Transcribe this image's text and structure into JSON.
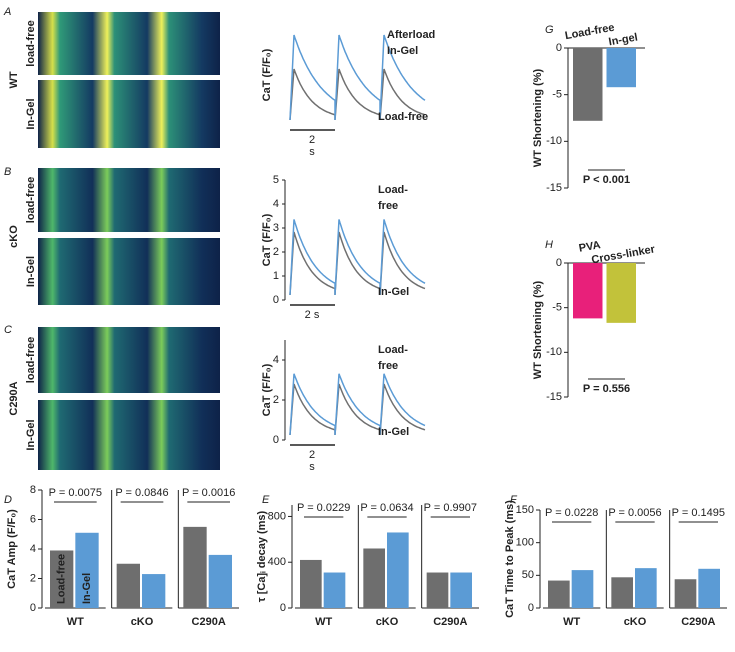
{
  "panel_labels": [
    "A",
    "B",
    "C",
    "D",
    "E",
    "F",
    "G",
    "H"
  ],
  "rows": [
    {
      "genotype": "WT",
      "color": "#f5a03c",
      "image_labels": [
        "load-free",
        "In-Gel"
      ]
    },
    {
      "genotype": "cKO",
      "color": "#f07878",
      "image_labels": [
        "load-free",
        "In-Gel"
      ]
    },
    {
      "genotype": "C290A",
      "color": "#b58ad0",
      "image_labels": [
        "load-free",
        "In-Gel"
      ]
    }
  ],
  "traces": [
    {
      "ylabel": "CaT (F/F₀)",
      "ylabel_color": "#f5a03c",
      "labels": [
        {
          "lines": [
            "Afterload",
            "In-Gel"
          ],
          "color": "#5b9bd5"
        },
        {
          "lines": [
            "Load-free"
          ],
          "color": "#707070"
        }
      ],
      "scale": [
        "2",
        "s"
      ]
    },
    {
      "ylabel": "CaT (F/F₀)",
      "ylabel_color": "#f07878",
      "ylim": [
        0,
        5
      ],
      "yticks": [
        0,
        1,
        2,
        3,
        4,
        5
      ],
      "labels": [
        {
          "lines": [
            "Load-",
            "free"
          ],
          "color": "#707070"
        },
        {
          "lines": [
            "In-Gel"
          ],
          "color": "#5b9bd5"
        }
      ],
      "scale": [
        "2 s"
      ]
    },
    {
      "ylabel": "CaT (F/F₀)",
      "ylabel_color": "#b58ad0",
      "ylim": [
        0,
        5
      ],
      "yticks": [
        0,
        2,
        4
      ],
      "labels": [
        {
          "lines": [
            "Load-",
            "free"
          ],
          "color": "#707070"
        },
        {
          "lines": [
            "In-Gel"
          ],
          "color": "#5b9bd5"
        }
      ],
      "scale": [
        "2",
        "s"
      ]
    }
  ],
  "chart_data": [
    {
      "type": "grouped",
      "ylabel": "CaT Amp (F/F₀)",
      "categories": [
        "WT",
        "cKO",
        "C290A"
      ],
      "category_colors": [
        "#f5a03c",
        "#f07878",
        "#a966c8"
      ],
      "series": [
        {
          "name": "Load-free",
          "color": "#6e6e6e",
          "values": [
            3.9,
            3.0,
            5.5
          ]
        },
        {
          "name": "In-Gel",
          "color": "#5b9bd5",
          "values": [
            5.1,
            2.3,
            3.6
          ]
        }
      ],
      "ylim": [
        0,
        8
      ],
      "yticks": [
        0,
        2,
        4,
        6,
        8
      ],
      "annotations": [
        "P = 0.0075",
        "P = 0.0846",
        "P = 0.0016"
      ]
    },
    {
      "type": "grouped",
      "ylabel": "τ [Ca]ᵢ decay (ms)",
      "categories": [
        "WT",
        "cKO",
        "C290A"
      ],
      "category_colors": [
        "#f5a03c",
        "#f07878",
        "#a966c8"
      ],
      "series": [
        {
          "color": "#6e6e6e",
          "values": [
            420,
            520,
            310
          ]
        },
        {
          "color": "#5b9bd5",
          "values": [
            310,
            660,
            310
          ]
        }
      ],
      "ylim": [
        0,
        900
      ],
      "yticks": [
        0,
        400,
        800
      ],
      "annotations": [
        "P = 0.0229",
        "P = 0.0634",
        "P = 0.9907"
      ]
    },
    {
      "type": "grouped",
      "ylabel": "CaT Time to Peak (ms)",
      "categories": [
        "WT",
        "cKO",
        "C290A"
      ],
      "category_colors": [
        "#f5a03c",
        "#f07878",
        "#a966c8"
      ],
      "series": [
        {
          "color": "#6e6e6e",
          "values": [
            42,
            47,
            44
          ]
        },
        {
          "color": "#5b9bd5",
          "values": [
            58,
            61,
            60
          ]
        }
      ],
      "ylim": [
        0,
        150
      ],
      "yticks": [
        0,
        50,
        100,
        150
      ],
      "annotations": [
        "P = 0.0228",
        "P = 0.0056",
        "P = 0.1495"
      ]
    },
    {
      "type": "bar",
      "ylabel": "WT Shortening (%)",
      "categories": [
        "Load-free",
        "In-gel"
      ],
      "values": [
        -7.8,
        -4.2
      ],
      "colors": [
        "#6e6e6e",
        "#5b9bd5"
      ],
      "ylim": [
        -15,
        0
      ],
      "yticks": [
        -15,
        -10,
        -5,
        0
      ],
      "annotations": [
        "P < 0.001"
      ]
    },
    {
      "type": "bar",
      "ylabel": "WT Shortening (%)",
      "categories": [
        "PVA",
        "Cross-linker"
      ],
      "values": [
        -6.2,
        -6.7
      ],
      "colors": [
        "#e8207a",
        "#c2c23a"
      ],
      "ylim": [
        -15,
        0
      ],
      "yticks": [
        -15,
        -10,
        -5,
        0
      ],
      "annotations": [
        "P = 0.556"
      ]
    }
  ]
}
